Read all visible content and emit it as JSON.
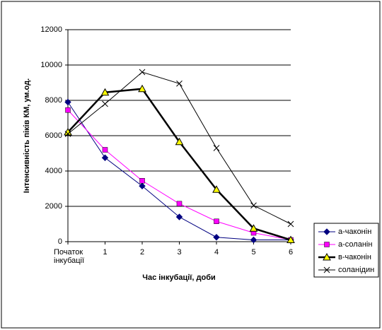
{
  "chart_data": {
    "type": "line",
    "y_label": "Інтенсивність піків КМ, ум.од.",
    "x_label": "Час інкубації, доби",
    "categories": [
      "Початок інкубації",
      "1",
      "2",
      "3",
      "4",
      "5",
      "6"
    ],
    "series": [
      {
        "name": "а-чаконін",
        "color": "#000080",
        "marker": "diamond",
        "values": [
          7900,
          4750,
          3150,
          1400,
          250,
          100,
          100
        ]
      },
      {
        "name": "а-соланін",
        "color": "#ff00ff",
        "marker": "square",
        "values": [
          7450,
          5200,
          3450,
          2150,
          1150,
          500,
          100
        ]
      },
      {
        "name": "в-чаконін",
        "color": "#000000",
        "marker": "triangle",
        "values": [
          6200,
          8450,
          8650,
          5650,
          2950,
          750,
          100
        ]
      },
      {
        "name": "соланідин",
        "color": "#000000",
        "marker": "x",
        "values": [
          6100,
          7800,
          9600,
          8950,
          5300,
          2050,
          1000
        ]
      }
    ],
    "ylim": [
      0,
      12000
    ],
    "yticks": [
      0,
      2000,
      4000,
      6000,
      8000,
      10000,
      12000
    ],
    "grid": true,
    "legend": "right"
  }
}
